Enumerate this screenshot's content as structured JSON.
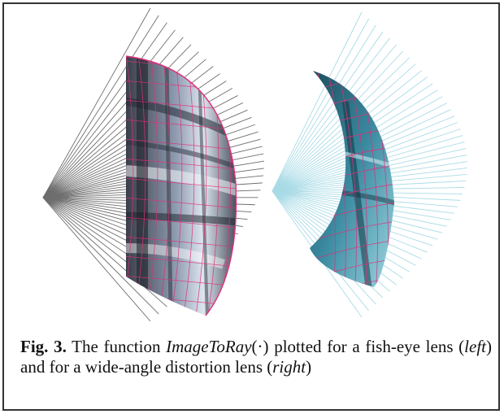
{
  "figure": {
    "left_image": "fisheye-lens-ray-plot",
    "right_image": "wide-angle-lens-ray-plot",
    "colors": {
      "left_rays": "#6e6e6e",
      "right_rays": "#a9dbe6",
      "grid_points": "#e0307a",
      "right_surface": "#2f6f82"
    }
  },
  "caption": {
    "label": "Fig. 3.",
    "text_1": " The function ",
    "func": "ImageToRay",
    "arg": "(·)",
    "text_2": " plotted for a fish-eye lens (",
    "left": "left",
    "text_3": ") and for a wide-angle distortion lens (",
    "right": "right",
    "text_4": ")"
  }
}
